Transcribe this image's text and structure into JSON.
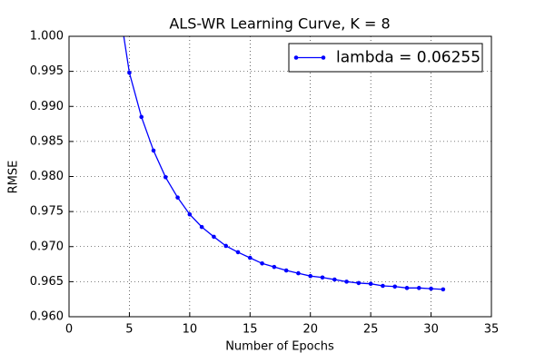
{
  "chart_data": {
    "type": "line",
    "title": "ALS-WR Learning Curve,  K = 8",
    "x_label": "Number of Epochs",
    "y_label": "RMSE",
    "x": [
      4,
      5,
      6,
      7,
      8,
      9,
      10,
      11,
      12,
      13,
      14,
      15,
      16,
      17,
      18,
      19,
      20,
      21,
      22,
      23,
      24,
      25,
      26,
      27,
      28,
      29,
      30,
      31
    ],
    "series": [
      {
        "name": "lambda = 0.06255",
        "color": "#0000ff",
        "values": [
          1.006,
          0.9948,
          0.9885,
          0.9837,
          0.9799,
          0.977,
          0.9746,
          0.9728,
          0.9714,
          0.9701,
          0.9692,
          0.9684,
          0.9676,
          0.9671,
          0.9666,
          0.9662,
          0.9658,
          0.9656,
          0.9653,
          0.965,
          0.9648,
          0.9647,
          0.9644,
          0.9643,
          0.9641,
          0.9641,
          0.964,
          0.9639
        ]
      }
    ],
    "xlim": [
      0,
      35
    ],
    "xticks": [
      0,
      5,
      10,
      15,
      20,
      25,
      30,
      35
    ],
    "ylim": [
      0.96,
      1.0
    ],
    "yticks": [
      {
        "value": 0.96,
        "label": "0.960"
      },
      0.965,
      {
        "value": 0.97,
        "label": "0.970"
      },
      0.975,
      {
        "value": 0.98,
        "label": "0.980"
      },
      0.985,
      {
        "value": 0.99,
        "label": "0.990"
      },
      0.995,
      {
        "value": 1.0,
        "label": "1.000"
      }
    ],
    "grid": true,
    "legend": "upper right"
  }
}
